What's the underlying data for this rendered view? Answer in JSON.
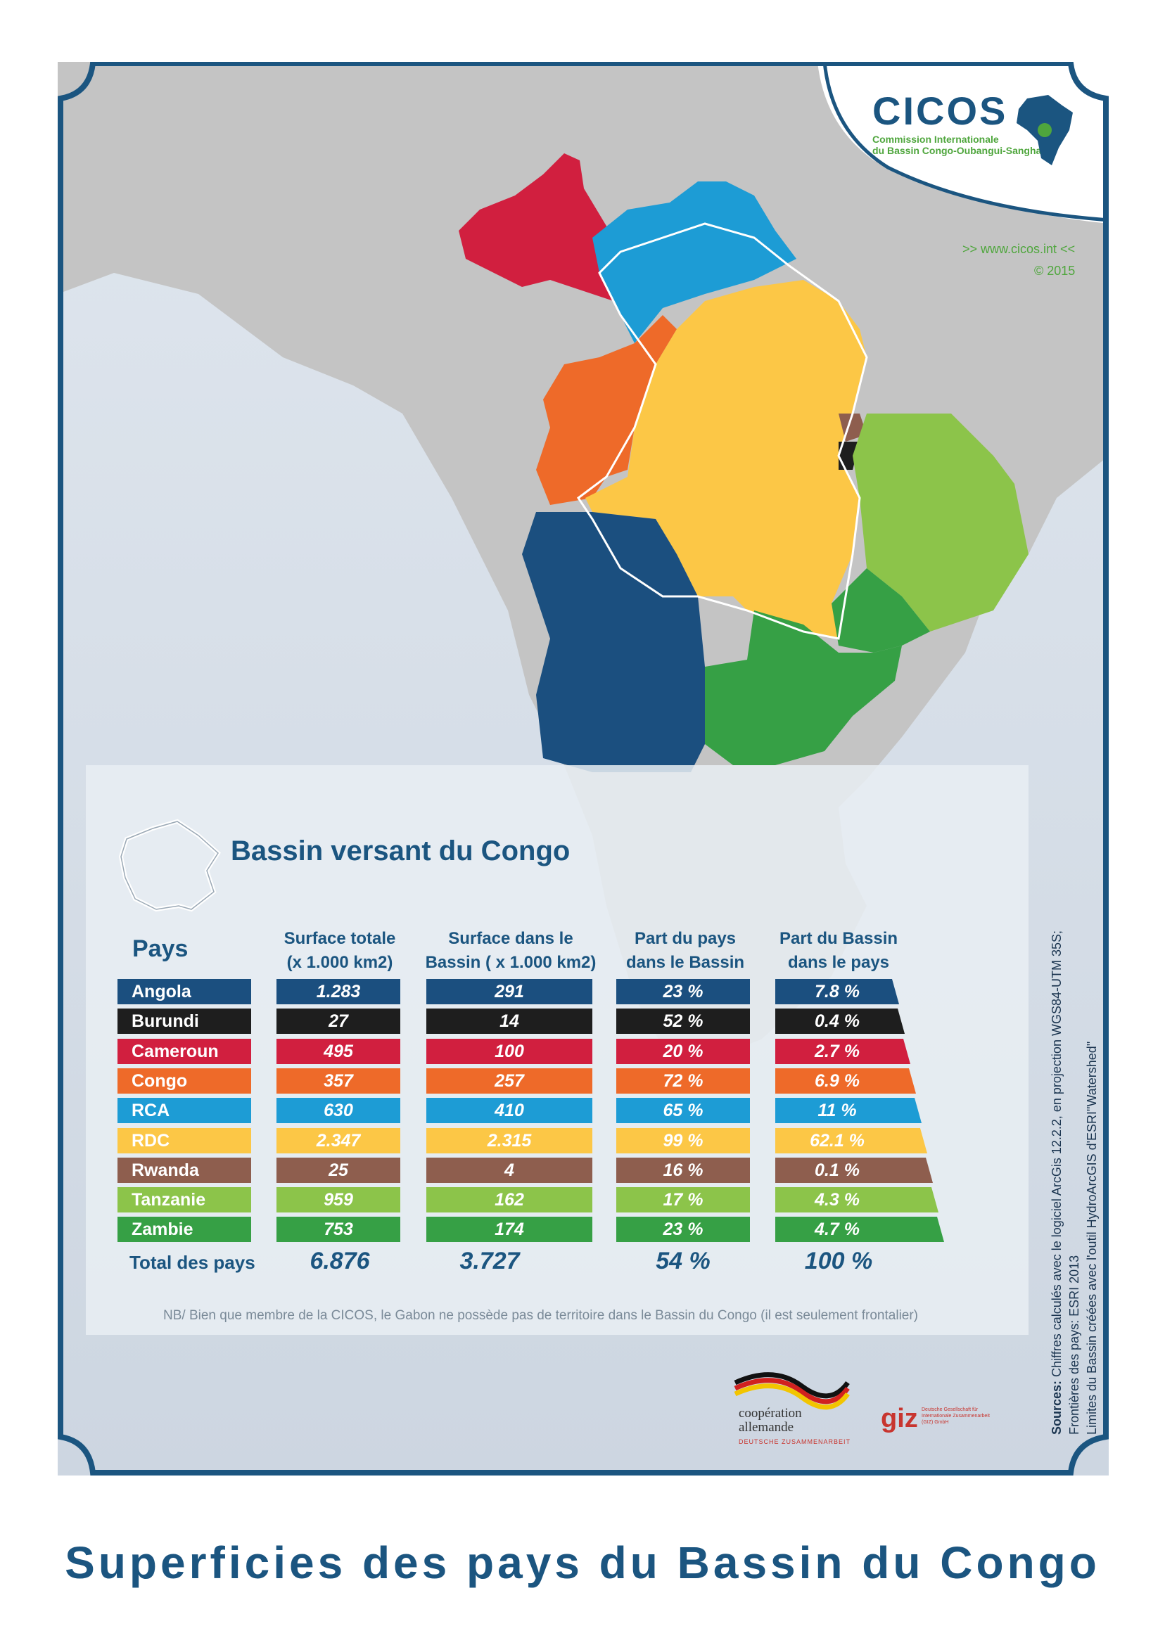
{
  "logo": {
    "name": "CICOS",
    "line1": "Commission Internationale",
    "line2": "du Bassin Congo-Oubangui-Sangha"
  },
  "website": ">> www.cicos.int <<",
  "copyright": "© 2015",
  "legend": {
    "title": "Bassin versant du Congo"
  },
  "table": {
    "headers": {
      "country": "Pays",
      "total_1": "Surface totale",
      "total_2": "(x 1.000 km2)",
      "basin_1": "Surface dans le",
      "basin_2": "Bassin ( x 1.000 km2)",
      "share_1": "Part du pays",
      "share_2": "dans le Bassin",
      "part_1": "Part du Bassin",
      "part_2": "dans le pays"
    },
    "rows": [
      {
        "country": "Angola",
        "surface_totale": "1.283",
        "surface_bassin": "291",
        "part_pays": "23 %",
        "part_bassin": "7.8 %",
        "color": "#1b4f7f"
      },
      {
        "country": "Burundi",
        "surface_totale": "27",
        "surface_bassin": "14",
        "part_pays": "52 %",
        "part_bassin": "0.4 %",
        "color": "#1e1e1e"
      },
      {
        "country": "Cameroun",
        "surface_totale": "495",
        "surface_bassin": "100",
        "part_pays": "20 %",
        "part_bassin": "2.7 %",
        "color": "#d11f3f"
      },
      {
        "country": "Congo",
        "surface_totale": "357",
        "surface_bassin": "257",
        "part_pays": "72 %",
        "part_bassin": "6.9 %",
        "color": "#ee6a29"
      },
      {
        "country": "RCA",
        "surface_totale": "630",
        "surface_bassin": "410",
        "part_pays": "65 %",
        "part_bassin": "11 %",
        "color": "#1d9cd5"
      },
      {
        "country": "RDC",
        "surface_totale": "2.347",
        "surface_bassin": "2.315",
        "part_pays": "99 %",
        "part_bassin": "62.1 %",
        "color": "#fcc746"
      },
      {
        "country": "Rwanda",
        "surface_totale": "25",
        "surface_bassin": "4",
        "part_pays": "16 %",
        "part_bassin": "0.1 %",
        "color": "#8e5e4e"
      },
      {
        "country": "Tanzanie",
        "surface_totale": "959",
        "surface_bassin": "162",
        "part_pays": "17 %",
        "part_bassin": "4.3 %",
        "color": "#8cc44a"
      },
      {
        "country": "Zambie",
        "surface_totale": "753",
        "surface_bassin": "174",
        "part_pays": "23 %",
        "part_bassin": "4.7 %",
        "color": "#36a045"
      }
    ],
    "total": {
      "label": "Total des pays",
      "surface_totale": "6.876",
      "surface_bassin": "3.727",
      "part_pays": "54 %",
      "part_bassin": "100 %"
    }
  },
  "note": "NB/ Bien que membre de la CICOS, le Gabon ne possède pas de territoire dans le Bassin du Congo (il est seulement frontalier)",
  "sources": {
    "label": "Sources:",
    "line1": "Chiffres calculés avec le logiciel ArcGis 12.2.2, en projection WGS84-UTM 35S;",
    "line2": "Frontières des pays: ESRI 2013",
    "line3": "Limites du Bassin créées avec l'outil HydroArcGIS d'ESRI\"Watershed\""
  },
  "partners": {
    "coop_1": "coopération",
    "coop_2": "allemande",
    "coop_3": "DEUTSCHE ZUSAMMENARBEIT",
    "giz": "giz",
    "giz_small": "Deutsche Gesellschaft für Internationale Zusammenarbeit (GIZ) GmbH"
  },
  "footer_title": "Superficies des pays du Bassin du Congo"
}
